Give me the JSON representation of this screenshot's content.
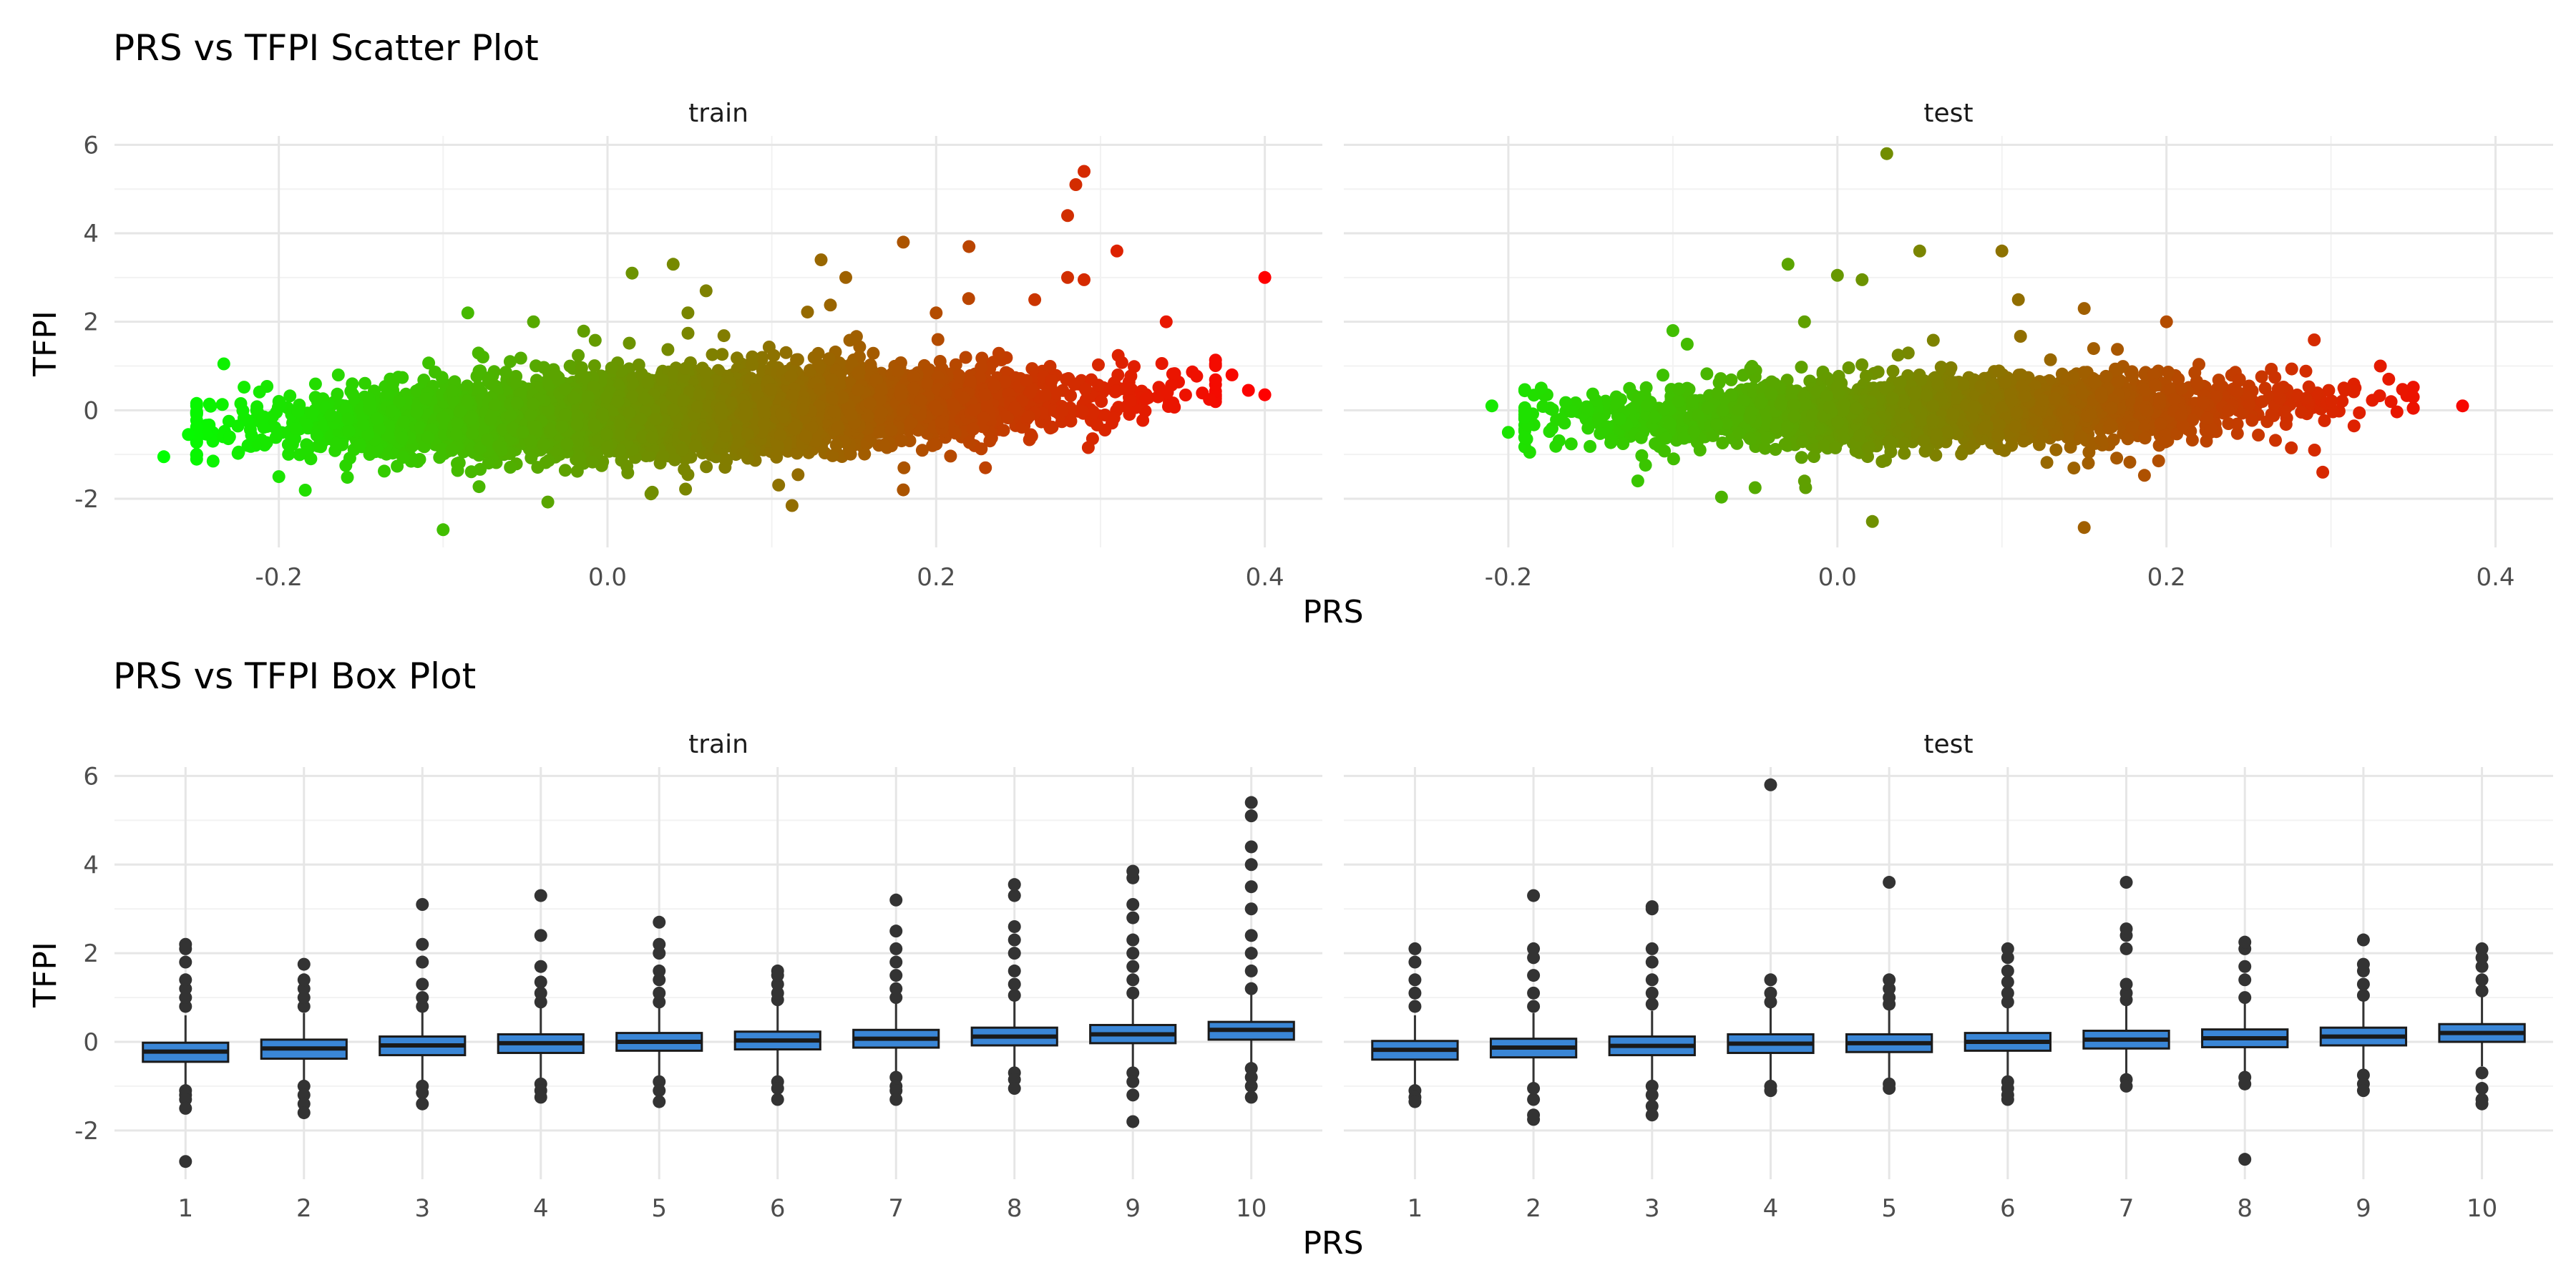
{
  "chart_data": [
    {
      "type": "scatter",
      "title": "PRS vs TFPI Scatter Plot",
      "xlabel": "PRS",
      "ylabel": "TFPI",
      "xlim": [
        -0.3,
        0.435
      ],
      "ylim": [
        -3.1,
        6.2
      ],
      "x_ticks": [
        -0.2,
        0.0,
        0.2,
        0.4
      ],
      "x_tick_labels": [
        "-0.2",
        "0.0",
        "0.2",
        "0.4"
      ],
      "y_ticks": [
        -2,
        0,
        2,
        4,
        6
      ],
      "y_tick_labels": [
        "-2",
        "0",
        "2",
        "4",
        "6"
      ],
      "grid": true,
      "color_scale": {
        "low": "#00ff00",
        "high": "#ff0000",
        "low_value": -0.27,
        "high_value": 0.4
      },
      "panels": [
        {
          "name": "train",
          "n_points": 7000,
          "x_range": [
            -0.27,
            0.4
          ],
          "x_mean": 0.05,
          "x_sd": 0.105,
          "trend": {
            "intercept": -0.08,
            "slope": 1.3,
            "resid_sd": 0.38
          },
          "highlight_points": [
            [
              -0.27,
              -1.05
            ],
            [
              -0.255,
              -0.55
            ],
            [
              -0.24,
              -1.15
            ],
            [
              -0.23,
              -0.6
            ],
            [
              -0.2,
              0.2
            ],
            [
              -0.2,
              -1.5
            ],
            [
              -0.1,
              -2.7
            ],
            [
              -0.085,
              2.2
            ],
            [
              -0.045,
              2.0
            ],
            [
              0.015,
              3.1
            ],
            [
              0.04,
              3.3
            ],
            [
              0.06,
              2.7
            ],
            [
              0.13,
              3.4
            ],
            [
              0.145,
              3.0
            ],
            [
              0.18,
              3.8
            ],
            [
              0.18,
              -1.8
            ],
            [
              0.2,
              2.2
            ],
            [
              0.22,
              3.7
            ],
            [
              0.23,
              -1.3
            ],
            [
              0.26,
              2.5
            ],
            [
              0.28,
              4.4
            ],
            [
              0.285,
              5.1
            ],
            [
              0.29,
              5.4
            ],
            [
              0.28,
              3.0
            ],
            [
              0.29,
              2.95
            ],
            [
              0.31,
              3.6
            ],
            [
              0.34,
              2.0
            ],
            [
              0.38,
              0.8
            ],
            [
              0.39,
              0.45
            ],
            [
              0.4,
              0.35
            ],
            [
              0.4,
              3.0
            ]
          ]
        },
        {
          "name": "test",
          "n_points": 3000,
          "x_range": [
            -0.21,
            0.38
          ],
          "x_mean": 0.06,
          "x_sd": 0.1,
          "trend": {
            "intercept": -0.05,
            "slope": 0.9,
            "resid_sd": 0.33
          },
          "highlight_points": [
            [
              -0.21,
              0.1
            ],
            [
              -0.2,
              -0.5
            ],
            [
              -0.18,
              0.5
            ],
            [
              -0.1,
              1.8
            ],
            [
              -0.03,
              3.3
            ],
            [
              -0.02,
              2.0
            ],
            [
              0.0,
              3.05
            ],
            [
              0.015,
              2.95
            ],
            [
              0.03,
              5.8
            ],
            [
              0.05,
              3.6
            ],
            [
              0.1,
              3.6
            ],
            [
              0.11,
              2.5
            ],
            [
              0.15,
              2.3
            ],
            [
              0.15,
              -2.65
            ],
            [
              0.2,
              2.0
            ],
            [
              0.29,
              -0.9
            ],
            [
              0.295,
              -1.4
            ],
            [
              0.33,
              1.0
            ],
            [
              0.35,
              0.3
            ],
            [
              0.38,
              0.1
            ],
            [
              -0.05,
              -1.75
            ],
            [
              -0.02,
              -1.6
            ]
          ]
        }
      ]
    },
    {
      "type": "box",
      "title": "PRS vs TFPI Box Plot",
      "xlabel": "PRS",
      "ylabel": "TFPI",
      "ylim": [
        -3.1,
        6.2
      ],
      "y_ticks": [
        -2,
        0,
        2,
        4,
        6
      ],
      "y_tick_labels": [
        "-2",
        "0",
        "2",
        "4",
        "6"
      ],
      "categories": [
        "1",
        "2",
        "3",
        "4",
        "5",
        "6",
        "7",
        "8",
        "9",
        "10"
      ],
      "grid": true,
      "box_fill": "#3a86d6",
      "box_stroke": "#1a1a1a",
      "panels": [
        {
          "name": "train",
          "boxes": [
            {
              "q1": -0.45,
              "median": -0.22,
              "q3": -0.02,
              "whisker_low": -1.05,
              "whisker_high": 0.6,
              "outliers": [
                -1.1,
                -1.2,
                -1.3,
                -1.5,
                -2.7,
                0.8,
                1.0,
                1.2,
                1.4,
                1.8,
                2.1,
                2.2
              ]
            },
            {
              "q1": -0.38,
              "median": -0.15,
              "q3": 0.05,
              "whisker_low": -0.95,
              "whisker_high": 0.65,
              "outliers": [
                -1.0,
                -1.2,
                -1.4,
                -1.6,
                0.8,
                1.0,
                1.2,
                1.4,
                1.75
              ]
            },
            {
              "q1": -0.3,
              "median": -0.08,
              "q3": 0.12,
              "whisker_low": -0.9,
              "whisker_high": 0.75,
              "outliers": [
                -1.0,
                -1.15,
                -1.4,
                0.8,
                1.0,
                1.3,
                1.8,
                2.2,
                3.1
              ]
            },
            {
              "q1": -0.25,
              "median": -0.03,
              "q3": 0.17,
              "whisker_low": -0.85,
              "whisker_high": 0.8,
              "outliers": [
                -0.95,
                -1.1,
                -1.25,
                0.9,
                1.1,
                1.35,
                1.7,
                2.4,
                3.3
              ]
            },
            {
              "q1": -0.2,
              "median": 0.0,
              "q3": 0.2,
              "whisker_low": -0.8,
              "whisker_high": 0.8,
              "outliers": [
                -0.9,
                -1.1,
                -1.35,
                0.9,
                1.1,
                1.4,
                1.6,
                2.0,
                2.2,
                2.7
              ]
            },
            {
              "q1": -0.17,
              "median": 0.03,
              "q3": 0.23,
              "whisker_low": -0.78,
              "whisker_high": 0.85,
              "outliers": [
                -0.9,
                -1.05,
                -1.3,
                0.95,
                1.1,
                1.3,
                1.5,
                1.6
              ]
            },
            {
              "q1": -0.13,
              "median": 0.07,
              "q3": 0.27,
              "whisker_low": -0.75,
              "whisker_high": 0.9,
              "outliers": [
                -0.8,
                -1.0,
                -1.1,
                -1.3,
                1.0,
                1.2,
                1.5,
                1.8,
                2.1,
                2.5,
                3.2
              ]
            },
            {
              "q1": -0.08,
              "median": 0.12,
              "q3": 0.32,
              "whisker_low": -0.65,
              "whisker_high": 0.95,
              "outliers": [
                -0.7,
                -0.85,
                -1.05,
                1.05,
                1.3,
                1.6,
                2.0,
                2.3,
                2.6,
                3.3,
                3.55
              ]
            },
            {
              "q1": -0.03,
              "median": 0.17,
              "q3": 0.38,
              "whisker_low": -0.6,
              "whisker_high": 1.0,
              "outliers": [
                -0.7,
                -0.9,
                -1.2,
                -1.8,
                1.1,
                1.4,
                1.7,
                2.0,
                2.3,
                2.8,
                3.1,
                3.7,
                3.85
              ]
            },
            {
              "q1": 0.05,
              "median": 0.27,
              "q3": 0.45,
              "whisker_low": -0.5,
              "whisker_high": 1.1,
              "outliers": [
                -0.6,
                -0.8,
                -1.0,
                -1.25,
                1.2,
                1.6,
                2.0,
                2.4,
                3.0,
                3.5,
                4.0,
                4.4,
                5.1,
                5.4
              ]
            }
          ]
        },
        {
          "name": "test",
          "boxes": [
            {
              "q1": -0.4,
              "median": -0.18,
              "q3": 0.02,
              "whisker_low": -1.0,
              "whisker_high": 0.6,
              "outliers": [
                -1.1,
                -1.25,
                -1.35,
                0.8,
                1.1,
                1.4,
                1.8,
                2.1
              ]
            },
            {
              "q1": -0.35,
              "median": -0.13,
              "q3": 0.07,
              "whisker_low": -0.95,
              "whisker_high": 0.65,
              "outliers": [
                -1.05,
                -1.3,
                -1.65,
                -1.75,
                0.8,
                1.1,
                1.5,
                1.9,
                2.1,
                3.3
              ]
            },
            {
              "q1": -0.3,
              "median": -0.09,
              "q3": 0.12,
              "whisker_low": -0.95,
              "whisker_high": 0.7,
              "outliers": [
                -1.0,
                -1.2,
                -1.45,
                -1.65,
                0.85,
                1.1,
                1.4,
                1.8,
                2.1,
                3.0,
                3.05
              ]
            },
            {
              "q1": -0.25,
              "median": -0.04,
              "q3": 0.17,
              "whisker_low": -0.9,
              "whisker_high": 0.78,
              "outliers": [
                -1.0,
                -1.1,
                0.9,
                1.1,
                1.4,
                5.8
              ]
            },
            {
              "q1": -0.23,
              "median": -0.03,
              "q3": 0.17,
              "whisker_low": -0.85,
              "whisker_high": 0.75,
              "outliers": [
                -0.95,
                -1.05,
                0.85,
                1.0,
                1.2,
                1.4,
                3.6
              ]
            },
            {
              "q1": -0.2,
              "median": 0.0,
              "q3": 0.2,
              "whisker_low": -0.8,
              "whisker_high": 0.8,
              "outliers": [
                -0.9,
                -1.05,
                -1.2,
                -1.3,
                0.9,
                1.1,
                1.35,
                1.6,
                1.9,
                2.1
              ]
            },
            {
              "q1": -0.15,
              "median": 0.05,
              "q3": 0.25,
              "whisker_low": -0.75,
              "whisker_high": 0.85,
              "outliers": [
                -0.85,
                -1.0,
                0.95,
                1.1,
                1.3,
                2.1,
                2.4,
                2.55,
                3.6
              ]
            },
            {
              "q1": -0.12,
              "median": 0.08,
              "q3": 0.28,
              "whisker_low": -0.7,
              "whisker_high": 0.9,
              "outliers": [
                -0.8,
                -0.95,
                -2.65,
                1.0,
                1.4,
                1.7,
                2.1,
                2.25
              ]
            },
            {
              "q1": -0.08,
              "median": 0.12,
              "q3": 0.32,
              "whisker_low": -0.65,
              "whisker_high": 0.95,
              "outliers": [
                -0.75,
                -0.95,
                -1.1,
                1.05,
                1.3,
                1.6,
                1.75,
                2.3
              ]
            },
            {
              "q1": 0.0,
              "median": 0.2,
              "q3": 0.4,
              "whisker_low": -0.55,
              "whisker_high": 1.05,
              "outliers": [
                -0.7,
                -1.05,
                -1.3,
                -1.4,
                1.15,
                1.4,
                1.7,
                1.9,
                2.1
              ]
            }
          ]
        }
      ]
    }
  ]
}
